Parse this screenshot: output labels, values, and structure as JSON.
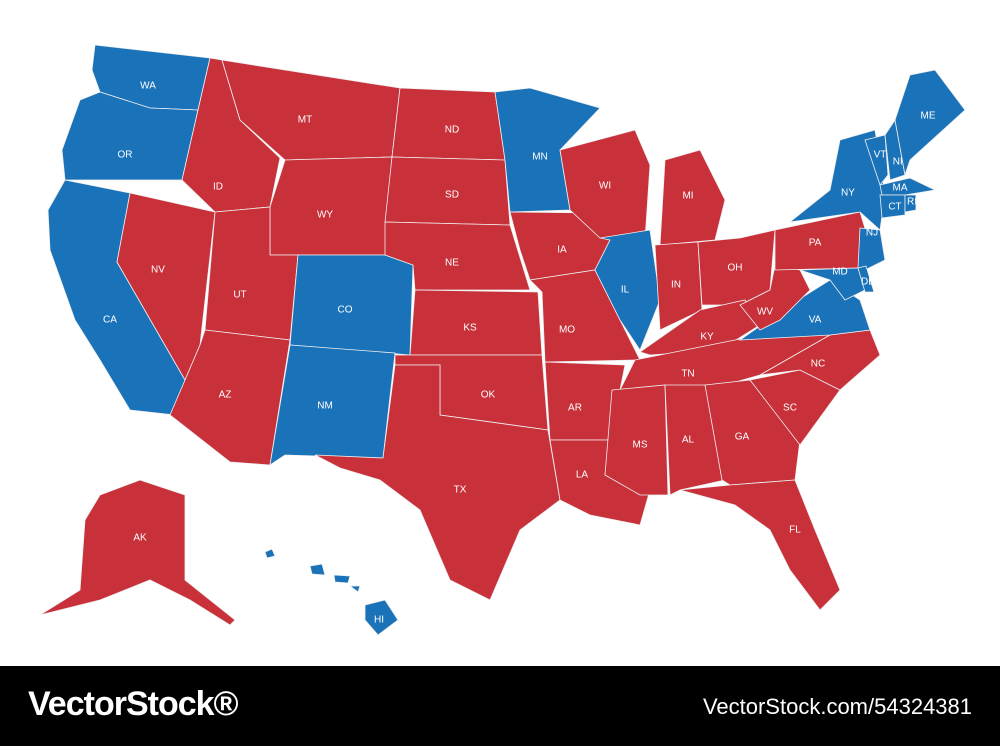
{
  "map": {
    "states": [
      {
        "label": "WA",
        "color": "#1a72b9"
      },
      {
        "label": "OR",
        "color": "#1a72b9"
      },
      {
        "label": "CA",
        "color": "#1a72b9"
      },
      {
        "label": "NV",
        "color": "#c8303a"
      },
      {
        "label": "ID",
        "color": "#c8303a"
      },
      {
        "label": "MT",
        "color": "#c8303a"
      },
      {
        "label": "WY",
        "color": "#c8303a"
      },
      {
        "label": "UT",
        "color": "#c8303a"
      },
      {
        "label": "AZ",
        "color": "#c8303a"
      },
      {
        "label": "CO",
        "color": "#1a72b9"
      },
      {
        "label": "NM",
        "color": "#1a72b9"
      },
      {
        "label": "ND",
        "color": "#c8303a"
      },
      {
        "label": "SD",
        "color": "#c8303a"
      },
      {
        "label": "NE",
        "color": "#c8303a"
      },
      {
        "label": "KS",
        "color": "#c8303a"
      },
      {
        "label": "OK",
        "color": "#c8303a"
      },
      {
        "label": "TX",
        "color": "#c8303a"
      },
      {
        "label": "MN",
        "color": "#1a72b9"
      },
      {
        "label": "IA",
        "color": "#c8303a"
      },
      {
        "label": "MO",
        "color": "#c8303a"
      },
      {
        "label": "AR",
        "color": "#c8303a"
      },
      {
        "label": "LA",
        "color": "#c8303a"
      },
      {
        "label": "WI",
        "color": "#c8303a"
      },
      {
        "label": "IL",
        "color": "#1a72b9"
      },
      {
        "label": "MI",
        "color": "#c8303a"
      },
      {
        "label": "IN",
        "color": "#c8303a"
      },
      {
        "label": "OH",
        "color": "#c8303a"
      },
      {
        "label": "KY",
        "color": "#c8303a"
      },
      {
        "label": "TN",
        "color": "#c8303a"
      },
      {
        "label": "MS",
        "color": "#c8303a"
      },
      {
        "label": "AL",
        "color": "#c8303a"
      },
      {
        "label": "GA",
        "color": "#c8303a"
      },
      {
        "label": "FL",
        "color": "#c8303a"
      },
      {
        "label": "SC",
        "color": "#c8303a"
      },
      {
        "label": "NC",
        "color": "#c8303a"
      },
      {
        "label": "VA",
        "color": "#1a72b9"
      },
      {
        "label": "WV",
        "color": "#c8303a"
      },
      {
        "label": "PA",
        "color": "#c8303a"
      },
      {
        "label": "NY",
        "color": "#1a72b9"
      },
      {
        "label": "NJ",
        "color": "#1a72b9"
      },
      {
        "label": "MD",
        "color": "#1a72b9"
      },
      {
        "label": "DE",
        "color": "#1a72b9"
      },
      {
        "label": "VT",
        "color": "#1a72b9"
      },
      {
        "label": "NH",
        "color": "#1a72b9"
      },
      {
        "label": "ME",
        "color": "#1a72b9"
      },
      {
        "label": "MA",
        "color": "#1a72b9"
      },
      {
        "label": "CT",
        "color": "#1a72b9"
      },
      {
        "label": "RI",
        "color": "#1a72b9"
      },
      {
        "label": "AK",
        "color": "#c8303a"
      },
      {
        "label": "HI",
        "color": "#1a72b9"
      }
    ]
  },
  "footer": {
    "brand": "VectorStock®",
    "id": "VectorStock.com/54324381"
  }
}
